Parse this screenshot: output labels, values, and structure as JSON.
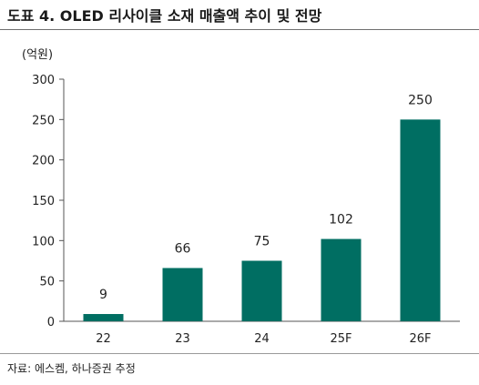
{
  "title": "도표 4. OLED 리사이클 소재 매출액 추이 및 전망",
  "source": "자료: 에스켐, 하나증권 추정",
  "chart_data": {
    "type": "bar",
    "title": "도표 4. OLED 리사이클 소재 매출액 추이 및 전망",
    "ylabel": "(억원)",
    "xlabel": "",
    "categories": [
      "22",
      "23",
      "24",
      "25F",
      "26F"
    ],
    "values": [
      9,
      66,
      75,
      102,
      250
    ],
    "ylim": [
      0,
      300
    ],
    "yticks": [
      0,
      50,
      100,
      150,
      200,
      250,
      300
    ],
    "grid": false,
    "bar_color": "#006e62"
  }
}
